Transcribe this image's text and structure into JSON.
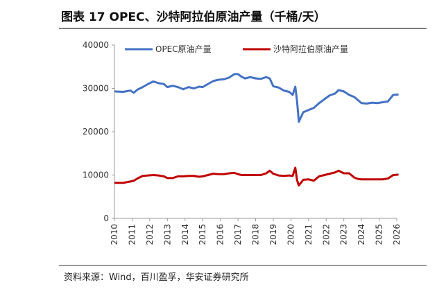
{
  "chart_data": {
    "type": "line",
    "title": "图表 17 OPEC、沙特阿拉伯原油产量（千桶/天）",
    "source": "资料来源：Wind，百川盈孚，华安证券研究所",
    "x": [
      2010,
      2010.5,
      2010.9,
      2011.1,
      2011.3,
      2011.6,
      2011.9,
      2012.2,
      2012.5,
      2012.8,
      2013,
      2013.3,
      2013.6,
      2013.9,
      2014.2,
      2014.5,
      2014.8,
      2015,
      2015.3,
      2015.6,
      2015.9,
      2016.2,
      2016.5,
      2016.8,
      2017,
      2017.2,
      2017.4,
      2017.7,
      2018,
      2018.3,
      2018.6,
      2018.8,
      2019,
      2019.3,
      2019.6,
      2019.9,
      2020.1,
      2020.25,
      2020.35,
      2020.45,
      2020.7,
      2021,
      2021.3,
      2021.6,
      2021.9,
      2022.2,
      2022.5,
      2022.7,
      2023,
      2023.3,
      2023.6,
      2023.8,
      2024,
      2024.3,
      2024.6,
      2024.9,
      2025.2,
      2025.5,
      2025.8,
      2026.1
    ],
    "series": [
      {
        "name": "OPEC原油产量",
        "color": "#4472c4",
        "values": [
          29300,
          29200,
          29500,
          29000,
          29700,
          30300,
          31000,
          31600,
          31200,
          31000,
          30300,
          30600,
          30300,
          29800,
          30300,
          30000,
          30400,
          30300,
          31000,
          31700,
          32000,
          32100,
          32500,
          33300,
          33300,
          32700,
          32300,
          32600,
          32300,
          32200,
          32600,
          32300,
          30500,
          30200,
          29500,
          29200,
          28500,
          30400,
          27000,
          22300,
          24500,
          25000,
          25500,
          26600,
          27500,
          28400,
          28800,
          29600,
          29300,
          28500,
          28000,
          27300,
          26600,
          26500,
          26700,
          26600,
          26800,
          27000,
          28500,
          28600
        ]
      },
      {
        "name": "沙特阿拉伯原油产量",
        "color": "#c00000",
        "values": [
          8200,
          8200,
          8500,
          8700,
          9200,
          9800,
          9900,
          10000,
          9900,
          9700,
          9300,
          9300,
          9700,
          9700,
          9800,
          9800,
          9600,
          9700,
          10000,
          10300,
          10200,
          10200,
          10400,
          10500,
          10200,
          10000,
          10000,
          10000,
          10000,
          10000,
          10400,
          11000,
          10300,
          9900,
          9800,
          9900,
          9800,
          11700,
          8800,
          7600,
          8900,
          9000,
          8700,
          9700,
          10000,
          10300,
          10600,
          11000,
          10400,
          10400,
          9400,
          9100,
          9000,
          9000,
          9000,
          9000,
          9000,
          9200,
          10000,
          10100
        ]
      }
    ],
    "xlim": [
      2010,
      2026
    ],
    "xticks": [
      2010,
      2011,
      2012,
      2013,
      2014,
      2015,
      2016,
      2017,
      2018,
      2019,
      2020,
      2021,
      2022,
      2023,
      2024,
      2025,
      2026
    ],
    "ylim": [
      0,
      40000
    ],
    "yticks": [
      0,
      10000,
      20000,
      30000,
      40000
    ],
    "grid": false
  }
}
